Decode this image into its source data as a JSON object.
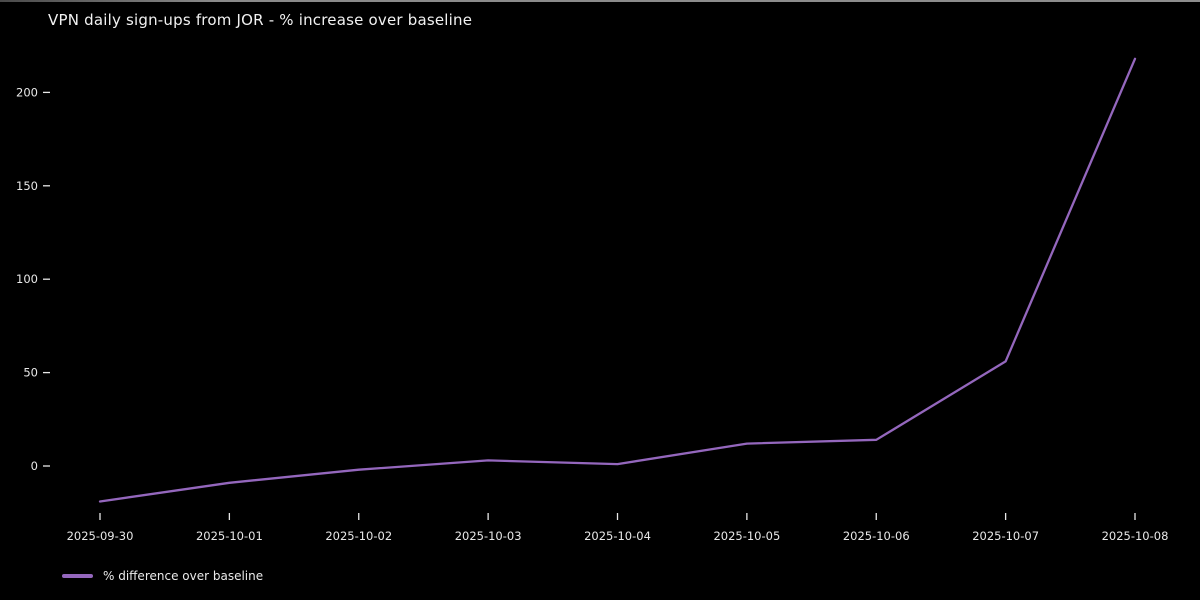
{
  "page": {
    "background": "#000000",
    "top_edge_color": "#8a8a8a",
    "text_color": "#e8e8e8"
  },
  "chart_data": {
    "type": "line",
    "title": "VPN daily sign-ups from JOR - % increase over baseline",
    "x": [
      "2025-09-30",
      "2025-10-01",
      "2025-10-02",
      "2025-10-03",
      "2025-10-04",
      "2025-10-05",
      "2025-10-06",
      "2025-10-07",
      "2025-10-08"
    ],
    "series": [
      {
        "name": "% difference over baseline",
        "color": "#9467bd",
        "values": [
          -19,
          -9,
          -2,
          3,
          1,
          12,
          14,
          56,
          218
        ]
      }
    ],
    "yticks": [
      0,
      50,
      100,
      150,
      200
    ],
    "ylim": [
      -31,
      230
    ],
    "xlabel": "",
    "ylabel": "",
    "grid": false,
    "legend_position": "lower-left",
    "tick_color": "#e8e8e8",
    "background": "#000000"
  }
}
